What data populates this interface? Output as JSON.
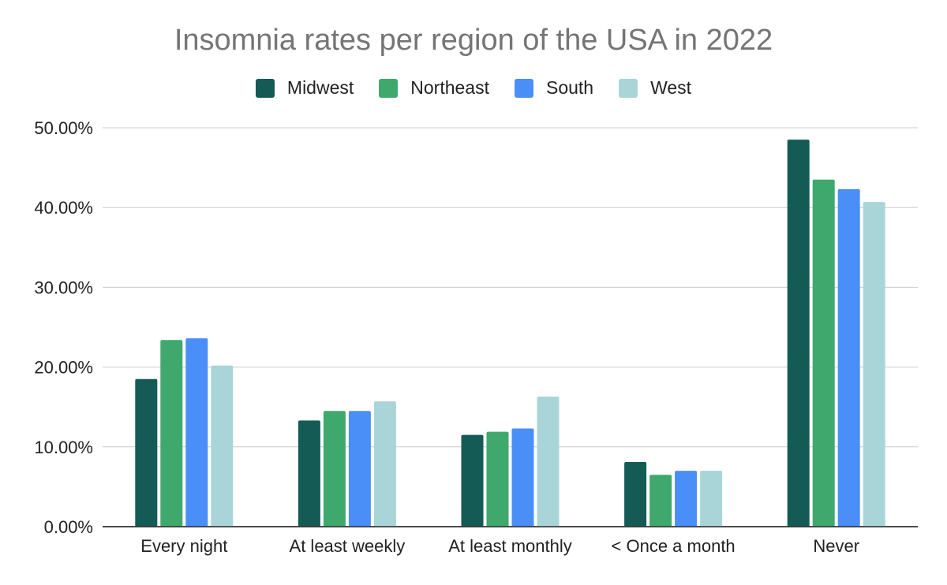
{
  "chart_data": {
    "type": "bar",
    "title": "Insomnia rates per region of the USA in 2022",
    "xlabel": "",
    "ylabel": "",
    "categories": [
      "Every night",
      "At least weekly",
      "At least monthly",
      "< Once a month",
      "Never"
    ],
    "series": [
      {
        "name": "Midwest",
        "color": "#145a55",
        "values": [
          18.5,
          13.3,
          11.5,
          8.1,
          48.5
        ]
      },
      {
        "name": "Northeast",
        "color": "#3fa96d",
        "values": [
          23.4,
          14.5,
          11.9,
          6.5,
          43.5
        ]
      },
      {
        "name": "South",
        "color": "#4a8ff7",
        "values": [
          23.6,
          14.5,
          12.3,
          7.0,
          42.3
        ]
      },
      {
        "name": "West",
        "color": "#a9d5d8",
        "values": [
          20.2,
          15.7,
          16.3,
          7.0,
          40.7
        ]
      }
    ],
    "ylim": [
      0,
      50
    ],
    "yticks": [
      0,
      10,
      20,
      30,
      40,
      50
    ],
    "ytick_labels": [
      "0.00%",
      "10.00%",
      "20.00%",
      "30.00%",
      "40.00%",
      "50.00%"
    ],
    "grid": true,
    "legend_position": "top"
  }
}
